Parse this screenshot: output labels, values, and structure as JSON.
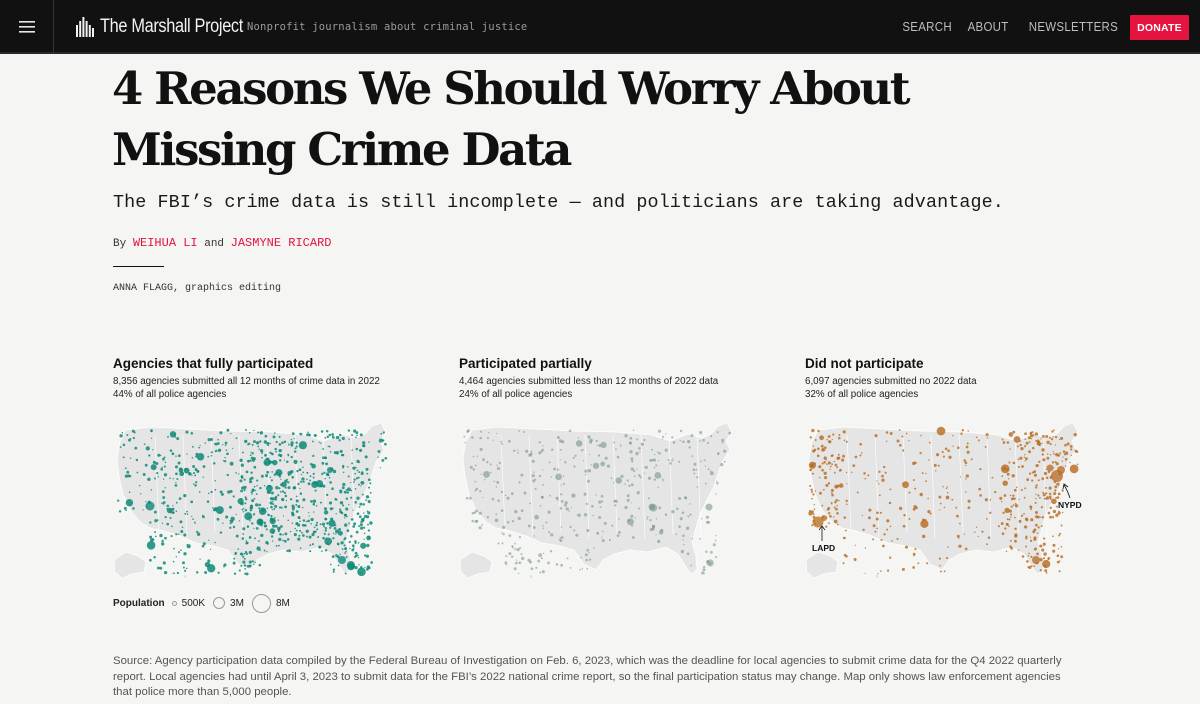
{
  "nav": {
    "site_name": "The Marshall Project",
    "tagline": "Nonprofit journalism about criminal justice",
    "links": [
      "SEARCH",
      "ABOUT",
      "NEWSLETTERS"
    ],
    "donate_label": "DONATE"
  },
  "article": {
    "headline": "4 Reasons We Should Worry About Missing Crime Data",
    "dek": "The FBI’s crime data is still incomplete — and politicians are taking advantage.",
    "byline_prefix": "By",
    "author1": "WEIHUA LI",
    "byline_and": "and",
    "author2": "JASMYNE RICARD",
    "credit_name": "ANNA FLAGG",
    "credit_role": ", graphics editing"
  },
  "graphic": {
    "panels": [
      {
        "title": "Agencies that fully participated",
        "line1": "8,356 agencies submitted all 12 months of crime data in 2022",
        "line2": "44% of all police agencies",
        "color": "#0f8a78"
      },
      {
        "title": "Participated partially",
        "line1": "4,464 agencies submitted less than 12 months of 2022 data",
        "line2": "24% of all police agencies",
        "color": "#4f4f4f"
      },
      {
        "title": "Did not participate",
        "line1": "6,097 agencies submitted no 2022 data",
        "line2": "32% of all police agencies",
        "color": "#b8691d"
      }
    ],
    "dot_colors": {
      "full": "#0f8a78",
      "partial": "#6d8f82",
      "none": "#b8691d",
      "land": "#e5e5e5",
      "border": "#ffffff"
    },
    "callouts": {
      "lapd": "LAPD",
      "nypd": "NYPD"
    },
    "legend": {
      "title": "Population",
      "items": [
        {
          "label": "500K",
          "population": 500000
        },
        {
          "label": "3M",
          "population": 3000000
        },
        {
          "label": "8M",
          "population": 8000000
        }
      ]
    }
  },
  "source": "Source: Agency participation data compiled by the Federal Bureau of Investigation on Feb. 6, 2023, which was the deadline for local agencies to submit crime data for the Q4 2022 quarterly report. Local agencies had until April 3, 2023 to submit data for the FBI’s 2022 national crime report, so the final participation status may change. Map only shows law enforcement agencies that police more than 5,000 people."
}
